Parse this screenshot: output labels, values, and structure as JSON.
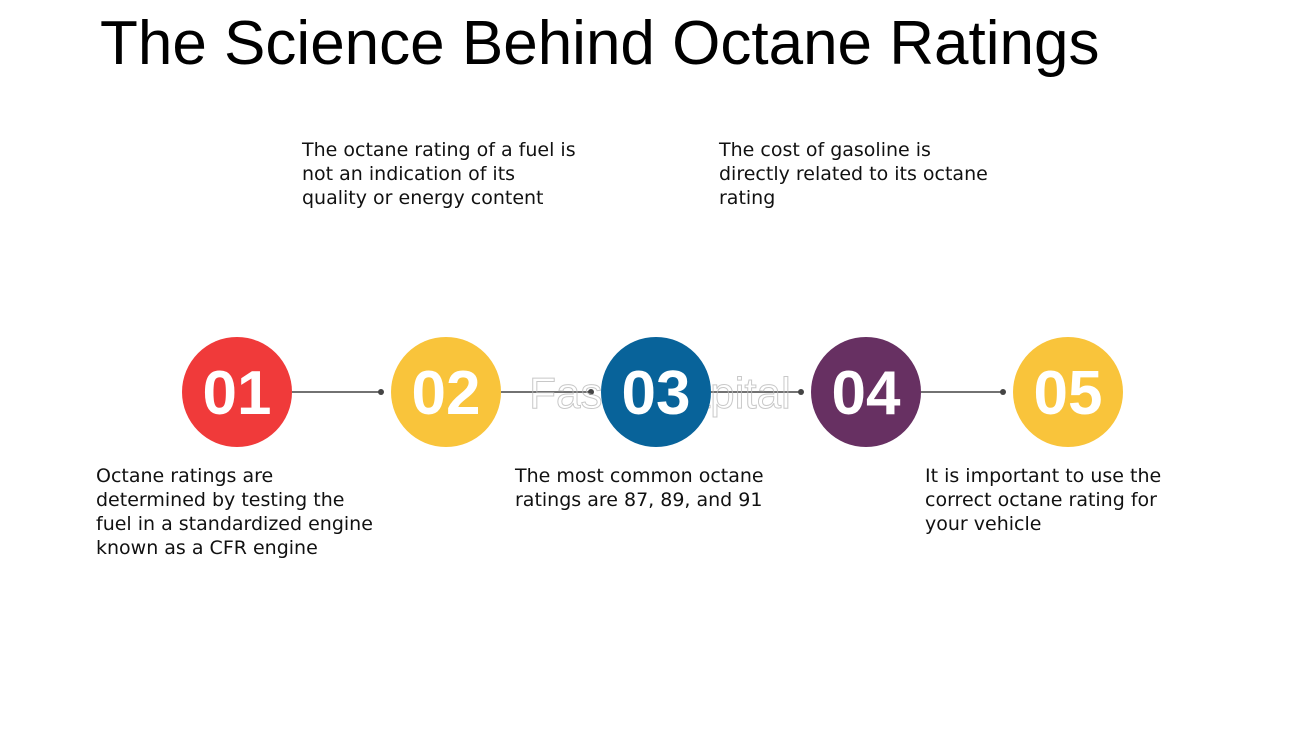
{
  "title": "The Science Behind Octane Ratings",
  "watermark": "FasterCapital",
  "steps": [
    {
      "number": "01",
      "color": "#f03a3a",
      "lines": [
        "Octane ratings are",
        "determined by testing the",
        "fuel in a standardized engine",
        "known as a CFR engine"
      ]
    },
    {
      "number": "02",
      "color": "#f9c43b",
      "lines": [
        "The octane rating of a fuel is",
        "not an indication of its",
        "quality or energy content"
      ]
    },
    {
      "number": "03",
      "color": "#08639a",
      "lines": [
        "The most common octane",
        "ratings are 87, 89, and 91"
      ]
    },
    {
      "number": "04",
      "color": "#673062",
      "lines": [
        "The cost of gasoline is",
        "directly related to its octane",
        "rating"
      ]
    },
    {
      "number": "05",
      "color": "#f9c43b",
      "lines": [
        "It is important to use the",
        "correct octane rating for",
        "your vehicle"
      ]
    }
  ]
}
